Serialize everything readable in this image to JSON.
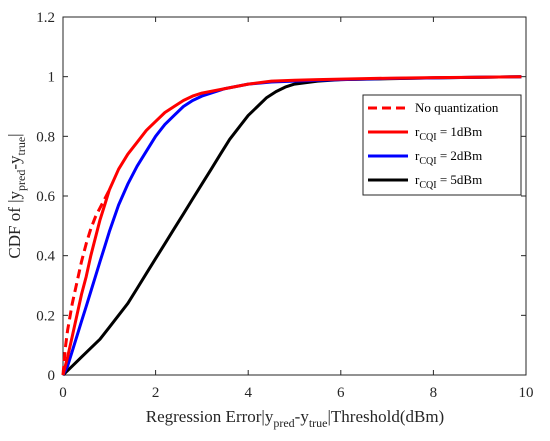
{
  "chart_data": {
    "type": "line",
    "xlabel": {
      "pre": "Regression Error|y",
      "sub1": "pred",
      "mid": "-y",
      "sub2": "true",
      "post": "|Threshold(dBm)"
    },
    "ylabel": {
      "pre": "CDF of |y",
      "sub1": "pred",
      "mid": "-y",
      "sub2": "true",
      "post": "|"
    },
    "xlim": [
      0,
      10
    ],
    "ylim": [
      0,
      1.2
    ],
    "xticks": [
      0,
      2,
      4,
      6,
      8,
      10
    ],
    "yticks": [
      0,
      0.2,
      0.4,
      0.6,
      0.8,
      1,
      1.2
    ],
    "grid": false,
    "legend_position": "right",
    "series": [
      {
        "name": "No quantization",
        "legend": {
          "pre": "No quantization",
          "sub": "",
          "post": ""
        },
        "color": "#ff0000",
        "style": "dashed",
        "x": [
          0,
          0.05,
          0.1,
          0.2,
          0.3,
          0.4,
          0.5,
          0.6,
          0.7,
          0.8,
          0.9,
          1.0
        ],
        "y": [
          0,
          0.09,
          0.15,
          0.24,
          0.31,
          0.38,
          0.44,
          0.49,
          0.53,
          0.56,
          0.59,
          0.62
        ]
      },
      {
        "name": "rCQI = 1dBm",
        "legend": {
          "pre": "r",
          "sub": "CQI",
          "post": " = 1dBm"
        },
        "color": "#ff0000",
        "style": "solid",
        "x": [
          0,
          0.1,
          0.2,
          0.3,
          0.4,
          0.5,
          0.6,
          0.7,
          0.8,
          0.9,
          1.0,
          1.2,
          1.4,
          1.6,
          1.8,
          2.0,
          2.2,
          2.4,
          2.6,
          2.8,
          3.0,
          3.5,
          4.0,
          4.5,
          5.0,
          5.5,
          6.0,
          7.0,
          8.0,
          9.0,
          9.9
        ],
        "y": [
          0,
          0.06,
          0.13,
          0.2,
          0.27,
          0.33,
          0.4,
          0.46,
          0.52,
          0.57,
          0.62,
          0.69,
          0.74,
          0.78,
          0.82,
          0.85,
          0.88,
          0.9,
          0.92,
          0.935,
          0.945,
          0.96,
          0.975,
          0.985,
          0.988,
          0.99,
          0.992,
          0.995,
          0.997,
          0.998,
          1.0
        ]
      },
      {
        "name": "rCQI = 2dBm",
        "legend": {
          "pre": "r",
          "sub": "CQI",
          "post": " = 2dBm"
        },
        "color": "#0000ff",
        "style": "solid",
        "x": [
          0,
          0.1,
          0.2,
          0.3,
          0.4,
          0.5,
          0.6,
          0.7,
          0.8,
          0.9,
          1.0,
          1.2,
          1.4,
          1.6,
          1.8,
          2.0,
          2.2,
          2.4,
          2.6,
          2.8,
          3.0,
          3.5,
          4.0,
          4.5,
          5.0,
          5.5,
          6.0,
          7.0,
          8.0,
          9.0,
          9.9
        ],
        "y": [
          0,
          0.03,
          0.08,
          0.13,
          0.18,
          0.23,
          0.28,
          0.33,
          0.38,
          0.43,
          0.48,
          0.57,
          0.64,
          0.7,
          0.75,
          0.8,
          0.84,
          0.87,
          0.9,
          0.92,
          0.935,
          0.96,
          0.975,
          0.982,
          0.985,
          0.988,
          0.99,
          0.994,
          0.996,
          0.998,
          1.0
        ]
      },
      {
        "name": "rCQI = 5dBm",
        "legend": {
          "pre": "r",
          "sub": "CQI",
          "post": " = 5dBm"
        },
        "color": "#000000",
        "style": "solid",
        "x": [
          0,
          0.2,
          0.4,
          0.6,
          0.8,
          1.0,
          1.2,
          1.4,
          1.6,
          1.8,
          2.0,
          2.2,
          2.4,
          2.6,
          2.8,
          3.0,
          3.2,
          3.4,
          3.6,
          3.8,
          4.0,
          4.2,
          4.4,
          4.6,
          4.8,
          5.0,
          5.5,
          6.0,
          7.0,
          8.0,
          9.0,
          9.9
        ],
        "y": [
          0,
          0.03,
          0.06,
          0.09,
          0.12,
          0.16,
          0.2,
          0.24,
          0.29,
          0.34,
          0.39,
          0.44,
          0.49,
          0.54,
          0.59,
          0.64,
          0.69,
          0.74,
          0.79,
          0.83,
          0.87,
          0.9,
          0.93,
          0.95,
          0.965,
          0.975,
          0.985,
          0.99,
          0.993,
          0.996,
          0.998,
          1.0
        ]
      }
    ]
  }
}
